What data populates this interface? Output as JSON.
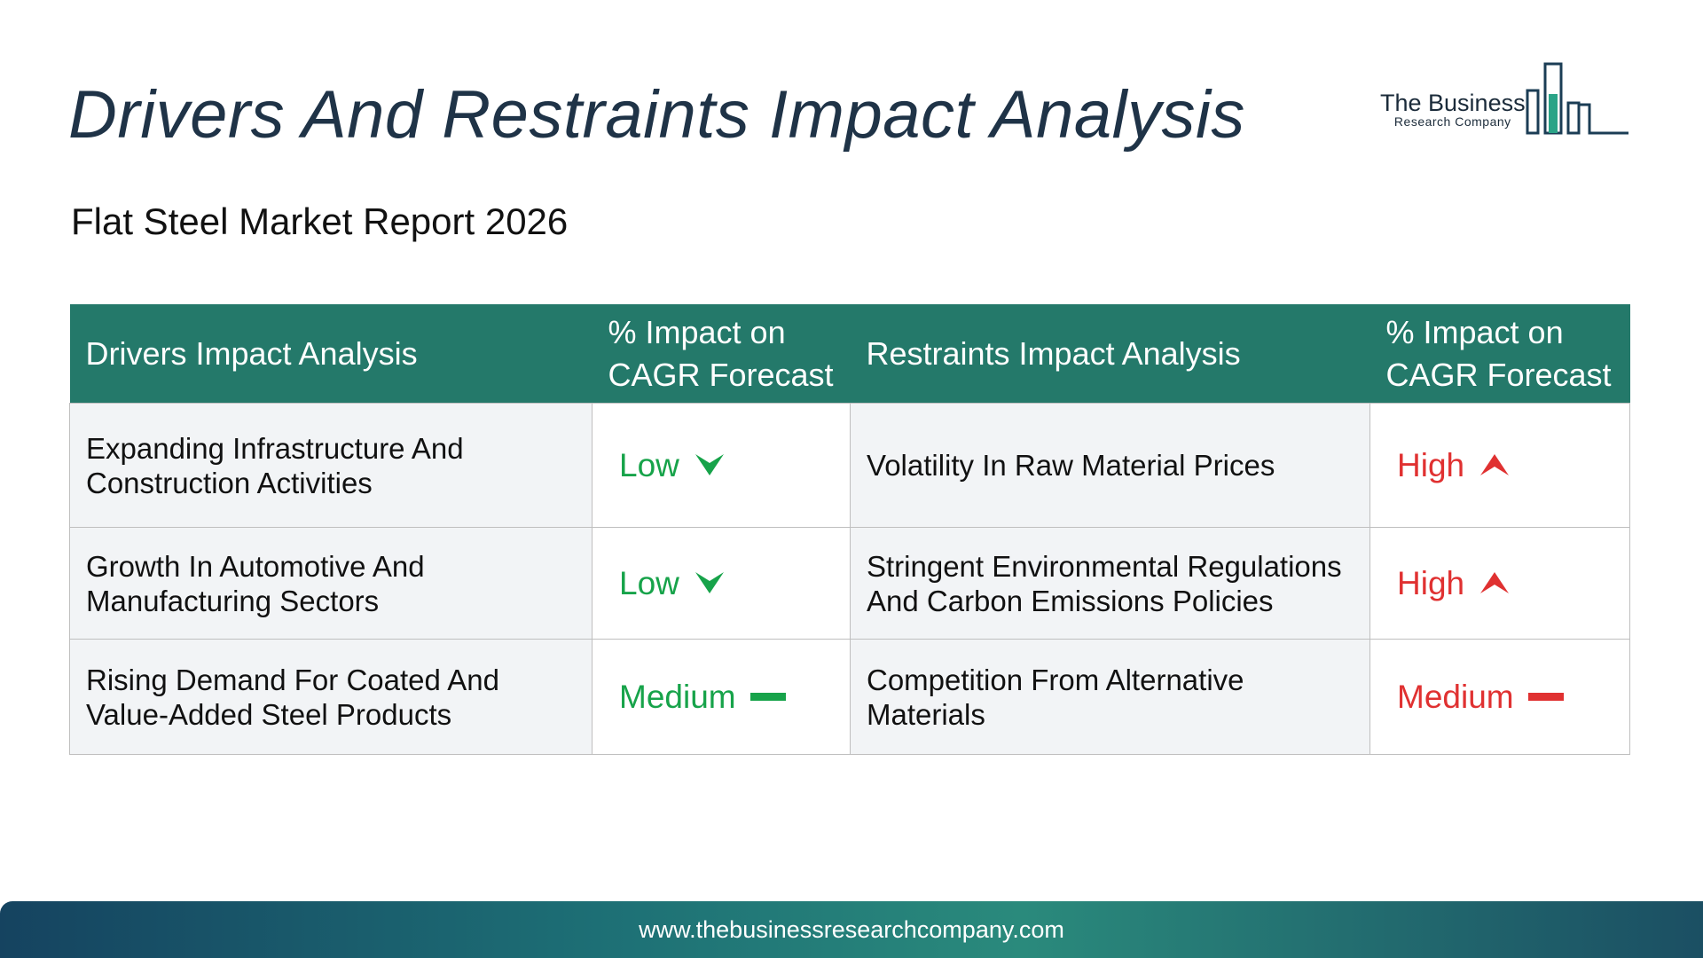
{
  "header": {
    "title": "Drivers And Restraints Impact Analysis",
    "subtitle": "Flat Steel Market Report 2026"
  },
  "logo": {
    "name": "The Business",
    "tagline": "Research Company",
    "icon": "building-bars-logo-icon"
  },
  "table": {
    "columns": [
      "Drivers Impact Analysis",
      "% Impact on CAGR Forecast",
      "Restraints Impact Analysis",
      "% Impact on CAGR Forecast"
    ],
    "rows": [
      {
        "driver": "Expanding Infrastructure And Construction Activities",
        "driver_impact": "Low",
        "driver_icon": "chevron-down-icon",
        "restraint": "Volatility In Raw Material Prices",
        "restraint_impact": "High",
        "restraint_icon": "arrow-up-icon"
      },
      {
        "driver": "Growth In Automotive And Manufacturing Sectors",
        "driver_impact": "Low",
        "driver_icon": "chevron-down-icon",
        "restraint": "Stringent Environmental Regulations And Carbon Emissions Policies",
        "restraint_impact": "High",
        "restraint_icon": "arrow-up-icon"
      },
      {
        "driver": "Rising Demand For Coated And Value-Added Steel Products",
        "driver_impact": "Medium",
        "driver_icon": "dash-icon",
        "restraint": "Competition From Alternative Materials",
        "restraint_impact": "Medium",
        "restraint_icon": "dash-icon"
      }
    ]
  },
  "colors": {
    "header_bg": "#24796a",
    "driver_rating": "#17a34a",
    "restraint_rating": "#e03131"
  },
  "footer": {
    "url": "www.thebusinessresearchcompany.com"
  }
}
